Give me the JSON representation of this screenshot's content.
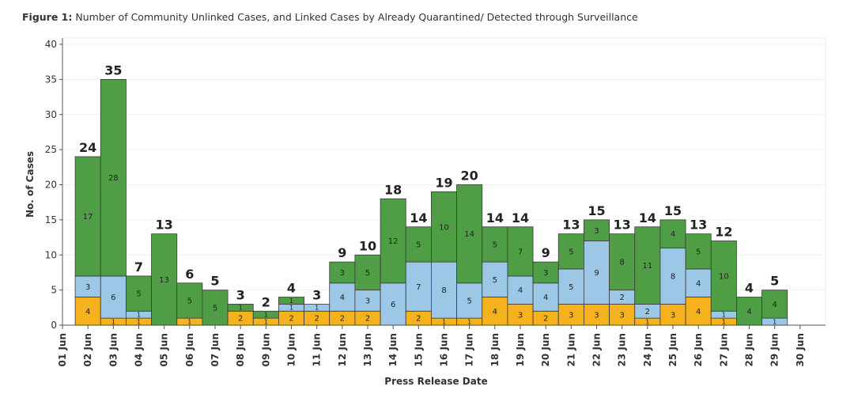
{
  "figure": {
    "label": "Figure 1:",
    "caption": "Number of Community Unlinked Cases, and Linked Cases by Already Quarantined/ Detected through Surveillance"
  },
  "colors": {
    "bottom": "#f5b21c",
    "middle": "#9cc7e6",
    "top": "#4f9e45"
  },
  "chart_data": {
    "type": "bar",
    "stacked": true,
    "xlabel": "Press Release Date",
    "ylabel": "No. of Cases",
    "ylim": [
      0,
      40
    ],
    "yticks": [
      0,
      5,
      10,
      15,
      20,
      25,
      30,
      35,
      40
    ],
    "categories": [
      "02 Jun",
      "03 Jun",
      "04 Jun",
      "05 Jun",
      "06 Jun",
      "07 Jun",
      "08 Jun",
      "09 Jun",
      "10 Jun",
      "11 Jun",
      "12 Jun",
      "13 Jun",
      "14 Jun",
      "15 Jun",
      "16 Jun",
      "17 Jun",
      "18 Jun",
      "19 Jun",
      "20 Jun",
      "21 Jun",
      "22 Jun",
      "23 Jun",
      "24 Jun",
      "25 Jun",
      "26 Jun",
      "27 Jun",
      "28 Jun",
      "29 Jun"
    ],
    "tick_labels": [
      "01 Jun",
      "02 Jun",
      "03 Jun",
      "04 Jun",
      "05 Jun",
      "06 Jun",
      "07 Jun",
      "08 Jun",
      "09 Jun",
      "10 Jun",
      "11 Jun",
      "12 Jun",
      "13 Jun",
      "14 Jun",
      "15 Jun",
      "16 Jun",
      "17 Jun",
      "18 Jun",
      "19 Jun",
      "20 Jun",
      "21 Jun",
      "22 Jun",
      "23 Jun",
      "24 Jun",
      "25 Jun",
      "26 Jun",
      "27 Jun",
      "28 Jun",
      "29 Jun",
      "30 Jun"
    ],
    "series": [
      {
        "name": "bottom",
        "values": [
          4,
          1,
          1,
          0,
          1,
          0,
          2,
          1,
          2,
          2,
          2,
          2,
          0,
          2,
          1,
          1,
          4,
          3,
          2,
          3,
          3,
          3,
          1,
          3,
          4,
          1,
          0,
          0
        ]
      },
      {
        "name": "middle",
        "values": [
          3,
          6,
          1,
          0,
          0,
          0,
          0,
          0,
          1,
          1,
          4,
          3,
          6,
          7,
          8,
          5,
          5,
          4,
          4,
          5,
          9,
          2,
          2,
          8,
          4,
          1,
          0,
          1
        ]
      },
      {
        "name": "top",
        "values": [
          17,
          28,
          5,
          13,
          5,
          5,
          1,
          1,
          1,
          0,
          3,
          5,
          12,
          5,
          10,
          14,
          5,
          7,
          3,
          5,
          3,
          8,
          11,
          4,
          5,
          10,
          4,
          4
        ]
      }
    ],
    "totals": [
      24,
      35,
      7,
      13,
      6,
      5,
      3,
      2,
      4,
      3,
      9,
      10,
      18,
      14,
      19,
      20,
      14,
      14,
      9,
      13,
      15,
      13,
      14,
      15,
      13,
      12,
      4,
      5
    ]
  }
}
